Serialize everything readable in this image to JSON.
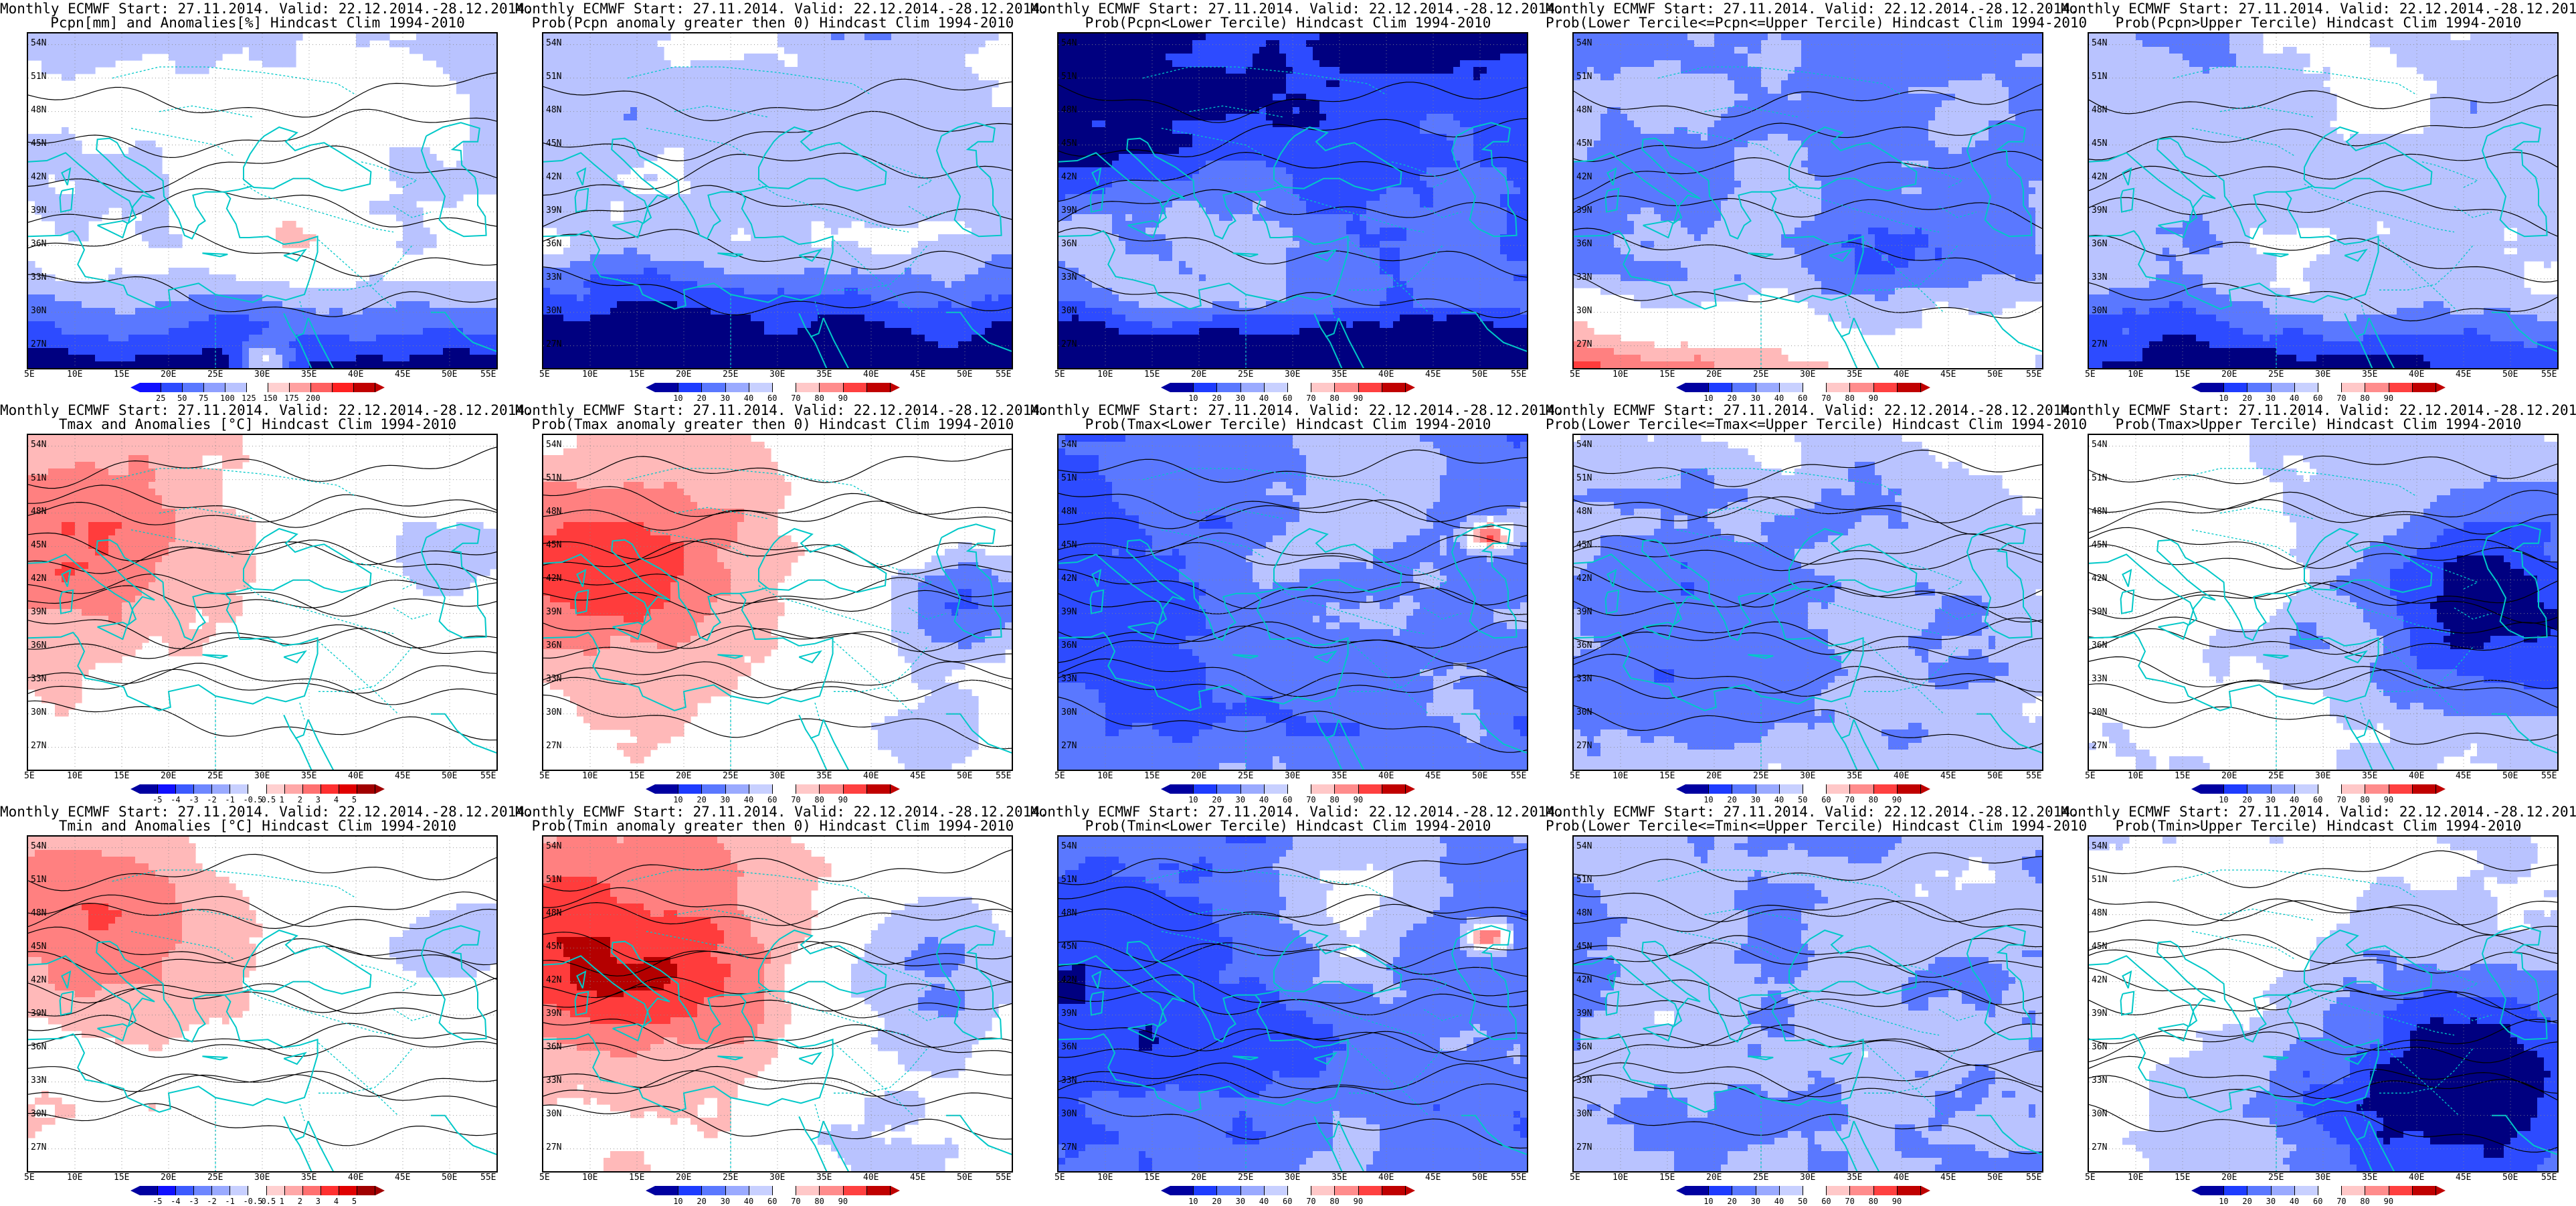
{
  "forecast": {
    "start": "27.11.2014.",
    "valid": "22.12.2014.-28.12.2014.",
    "hindcast": "Hindcast Clim 1994-2010"
  },
  "map_extent": {
    "lon_min": 5,
    "lon_max": 55,
    "lat_min": 25,
    "lat_max": 55
  },
  "lat_ticks": [
    "54N",
    "51N",
    "48N",
    "45N",
    "42N",
    "39N",
    "36N",
    "33N",
    "30N",
    "27N"
  ],
  "lon_ticks": [
    "5E",
    "10E",
    "15E",
    "20E",
    "25E",
    "30E",
    "35E",
    "40E",
    "45E",
    "50E",
    "55E"
  ],
  "colors": {
    "deep_blue": "#000080",
    "mid_blue": "#2d4bff",
    "light_blue": "#b9c3ff",
    "white": "#ffffff",
    "light_red": "#ffb9b9",
    "mid_red": "#ff3c3c",
    "deep_red": "#b40000",
    "coastline": "#00c8c8",
    "contour": "#000000"
  },
  "colorbars": {
    "pcpn": {
      "labels": [
        "25",
        "50",
        "75",
        "100",
        "125",
        "150",
        "175",
        "200"
      ],
      "colors": [
        "#1010ff",
        "#2d4bff",
        "#5a78ff",
        "#8fa0ff",
        "#b9c3ff",
        "#ffffff",
        "#ffd0d0",
        "#ffa0a0",
        "#ff6060",
        "#ff2020",
        "#c00000"
      ]
    },
    "anom": {
      "labels": [
        "-5",
        "-4",
        "-3",
        "-2",
        "-1",
        "-0.5",
        "0.5",
        "1",
        "2",
        "3",
        "4",
        "5"
      ],
      "colors": [
        "#0000a0",
        "#1010ff",
        "#3c5aff",
        "#6e87ff",
        "#9aaaff",
        "#c8d0ff",
        "#ffffff",
        "#ffd0d0",
        "#ffa8a8",
        "#ff7070",
        "#ff3030",
        "#e00000",
        "#a00000"
      ]
    },
    "prob": {
      "labels": [
        "10",
        "20",
        "30",
        "40",
        "60",
        "70",
        "80",
        "90"
      ],
      "colors": [
        "#0000a0",
        "#1e3cff",
        "#5a78ff",
        "#9aaaff",
        "#c8d0ff",
        "#ffffff",
        "#ffc8c8",
        "#ff8c8c",
        "#ff4040",
        "#c00000"
      ]
    },
    "prob2": {
      "labels": [
        "10",
        "20",
        "30",
        "40",
        "50",
        "60",
        "70",
        "80",
        "90"
      ],
      "colors": [
        "#0000a0",
        "#1e3cff",
        "#5a78ff",
        "#9aaaff",
        "#c8d0ff",
        "#ffffff",
        "#ffc8c8",
        "#ff8c8c",
        "#ff4040",
        "#c00000"
      ]
    }
  },
  "panels": [
    {
      "title_line1": "Monthly ECMWF Start: 27.11.2014. Valid: 22.12.2014.-28.12.2014.",
      "title_line2": "Pcpn[mm] and Anomalies[%] Hindcast Clim 1994-2010",
      "colorbar": "pcpn",
      "field": "pcp_anom"
    },
    {
      "title_line1": "Monthly ECMWF Start: 27.11.2014. Valid: 22.12.2014.-28.12.2014.",
      "title_line2": "Prob(Pcpn anomaly greater then 0) Hindcast Clim 1994-2010",
      "colorbar": "prob",
      "field": "pcp_pos"
    },
    {
      "title_line1": "Monthly ECMWF Start: 27.11.2014. Valid: 22.12.2014.-28.12.2014.",
      "title_line2": "Prob(Pcpn<Lower Tercile) Hindcast Clim 1994-2010",
      "colorbar": "prob",
      "field": "pcp_low"
    },
    {
      "title_line1": "Monthly ECMWF Start: 27.11.2014. Valid: 22.12.2014.-28.12.2014.",
      "title_line2": "Prob(Lower Tercile<=Pcpn<=Upper Tercile) Hindcast Clim 1994-2010",
      "colorbar": "prob",
      "field": "pcp_mid"
    },
    {
      "title_line1": "Monthly ECMWF Start: 27.11.2014. Valid: 22.12.2014.-28.12.2014.",
      "title_line2": "Prob(Pcpn>Upper Tercile) Hindcast Clim 1994-2010",
      "colorbar": "prob",
      "field": "pcp_up"
    },
    {
      "title_line1": "Monthly ECMWF Start: 27.11.2014. Valid: 22.12.2014.-28.12.2014.",
      "title_line2": "Tmax and Anomalies [°C] Hindcast Clim 1994-2010",
      "colorbar": "anom",
      "field": "tmax_anom"
    },
    {
      "title_line1": "Monthly ECMWF Start: 27.11.2014. Valid: 22.12.2014.-28.12.2014.",
      "title_line2": "Prob(Tmax anomaly greater then 0) Hindcast Clim 1994-2010",
      "colorbar": "prob",
      "field": "tmax_pos"
    },
    {
      "title_line1": "Monthly ECMWF Start: 27.11.2014. Valid: 22.12.2014.-28.12.2014.",
      "title_line2": "Prob(Tmax<Lower Tercile) Hindcast Clim 1994-2010",
      "colorbar": "prob",
      "field": "tmax_low"
    },
    {
      "title_line1": "Monthly ECMWF Start: 27.11.2014. Valid: 22.12.2014.-28.12.2014.",
      "title_line2": "Prob(Lower Tercile<=Tmax<=Upper Tercile) Hindcast Clim 1994-2010",
      "colorbar": "prob2",
      "field": "tmax_mid"
    },
    {
      "title_line1": "Monthly ECMWF Start: 27.11.2014. Valid: 22.12.2014.-28.12.2014.",
      "title_line2": "Prob(Tmax>Upper Tercile) Hindcast Clim 1994-2010",
      "colorbar": "prob",
      "field": "tmax_up"
    },
    {
      "title_line1": "Monthly ECMWF Start: 27.11.2014. Valid: 22.12.2014.-28.12.2014.",
      "title_line2": "Tmin and Anomalies [°C] Hindcast Clim 1994-2010",
      "colorbar": "anom",
      "field": "tmin_anom"
    },
    {
      "title_line1": "Monthly ECMWF Start: 27.11.2014. Valid: 22.12.2014.-28.12.2014.",
      "title_line2": "Prob(Tmin anomaly greater then 0) Hindcast Clim 1994-2010",
      "colorbar": "prob",
      "field": "tmin_pos"
    },
    {
      "title_line1": "Monthly ECMWF Start: 27.11.2014. Valid: 22.12.2014.-28.12.2014.",
      "title_line2": "Prob(Tmin<Lower Tercile) Hindcast Clim 1994-2010",
      "colorbar": "prob",
      "field": "tmin_low"
    },
    {
      "title_line1": "Monthly ECMWF Start: 27.11.2014. Valid: 22.12.2014.-28.12.2014.",
      "title_line2": "Prob(Lower Tercile<=Tmin<=Upper Tercile) Hindcast Clim 1994-2010",
      "colorbar": "prob2",
      "field": "tmin_mid"
    },
    {
      "title_line1": "Monthly ECMWF Start: 27.11.2014. Valid: 22.12.2014.-28.12.2014.",
      "title_line2": "Prob(Tmin>Upper Tercile) Hindcast Clim 1994-2010",
      "colorbar": "prob",
      "field": "tmin_up"
    }
  ]
}
